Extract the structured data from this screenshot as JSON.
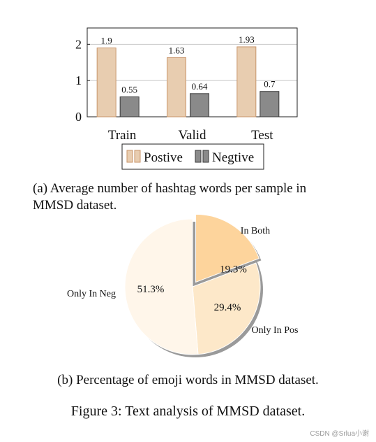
{
  "chart_data": [
    {
      "type": "bar",
      "categories": [
        "Train",
        "Valid",
        "Test"
      ],
      "series": [
        {
          "name": "Postive",
          "values": [
            1.9,
            1.63,
            1.93
          ],
          "labels": [
            "1.9",
            "1.63",
            "1.93"
          ],
          "color": "#e8cdb0",
          "stroke": "#c8956a"
        },
        {
          "name": "Negtive",
          "values": [
            0.55,
            0.64,
            0.7
          ],
          "labels": [
            "0.55",
            "0.64",
            "0.7"
          ],
          "color": "#8a8a8a",
          "stroke": "#3a3a3a"
        }
      ],
      "yticks": [
        "0",
        "1",
        "2"
      ],
      "ylim": [
        0,
        2.45
      ],
      "grid": true,
      "legend_position": "bottom"
    },
    {
      "type": "pie",
      "slices": [
        {
          "label": "In Both",
          "value": 19.3,
          "text": "19.3%",
          "color": "#fdd49c",
          "exploded": true
        },
        {
          "label": "Only In Pos",
          "value": 29.4,
          "text": "29.4%",
          "color": "#fde8c9",
          "exploded": false
        },
        {
          "label": "Only In Neg",
          "value": 51.3,
          "text": "51.3%",
          "color": "#fff6ea",
          "exploded": false
        }
      ]
    }
  ],
  "captions": {
    "a": "(a) Average number of hashtag words per sample in MMSD dataset.",
    "b": "(b) Percentage of emoji words in MMSD dataset.",
    "figure": "Figure 3: Text analysis of MMSD dataset."
  },
  "watermark": "CSDN @Srlua小谢"
}
